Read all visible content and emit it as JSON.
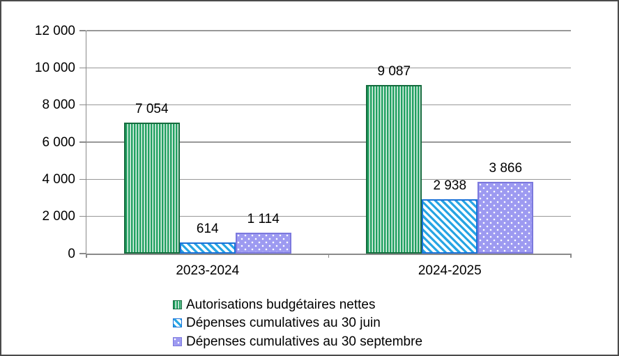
{
  "chart_data": {
    "type": "bar",
    "title": "",
    "categories": [
      "2023-2024",
      "2024-2025"
    ],
    "series": [
      {
        "name": "Autorisations budgétaires nettes",
        "values": [
          7054,
          9087
        ],
        "value_labels": [
          "7 054",
          "9 087"
        ],
        "pattern": "vertical-stripes",
        "pattern_color": "#21A061",
        "fill_color": "#E9F6EE",
        "border_color": "#156C3E"
      },
      {
        "name": "Dépenses cumulatives au 30 juin",
        "values": [
          614,
          2938
        ],
        "value_labels": [
          "614",
          "2 938"
        ],
        "pattern": "diagonal-stripes",
        "pattern_color": "#27A5E4",
        "fill_color": "#FFFFFF",
        "border_color": "#1B72D8"
      },
      {
        "name": "Dépenses cumulatives au 30 septembre",
        "values": [
          1114,
          3866
        ],
        "value_labels": [
          "1 114",
          "3 866"
        ],
        "pattern": "dots",
        "pattern_color": "#FFFFFF",
        "fill_color": "#9D9AF1",
        "border_color": "#7C79DE"
      }
    ],
    "xlabel": "",
    "ylabel": "",
    "ylim": [
      0,
      12000
    ],
    "y_ticks": [
      {
        "value": 12000,
        "label": "12 000"
      },
      {
        "value": 10000,
        "label": "10 000"
      },
      {
        "value": 8000,
        "label": "8 000"
      },
      {
        "value": 6000,
        "label": "6 000"
      },
      {
        "value": 4000,
        "label": "4 000"
      },
      {
        "value": 2000,
        "label": "2 000"
      },
      {
        "value": 0,
        "label": "0"
      }
    ],
    "grid": true,
    "legend_position": "bottom-center",
    "axis_color": "#8A8A8A",
    "gridline_color": "#989898",
    "text_color": "#000000"
  }
}
